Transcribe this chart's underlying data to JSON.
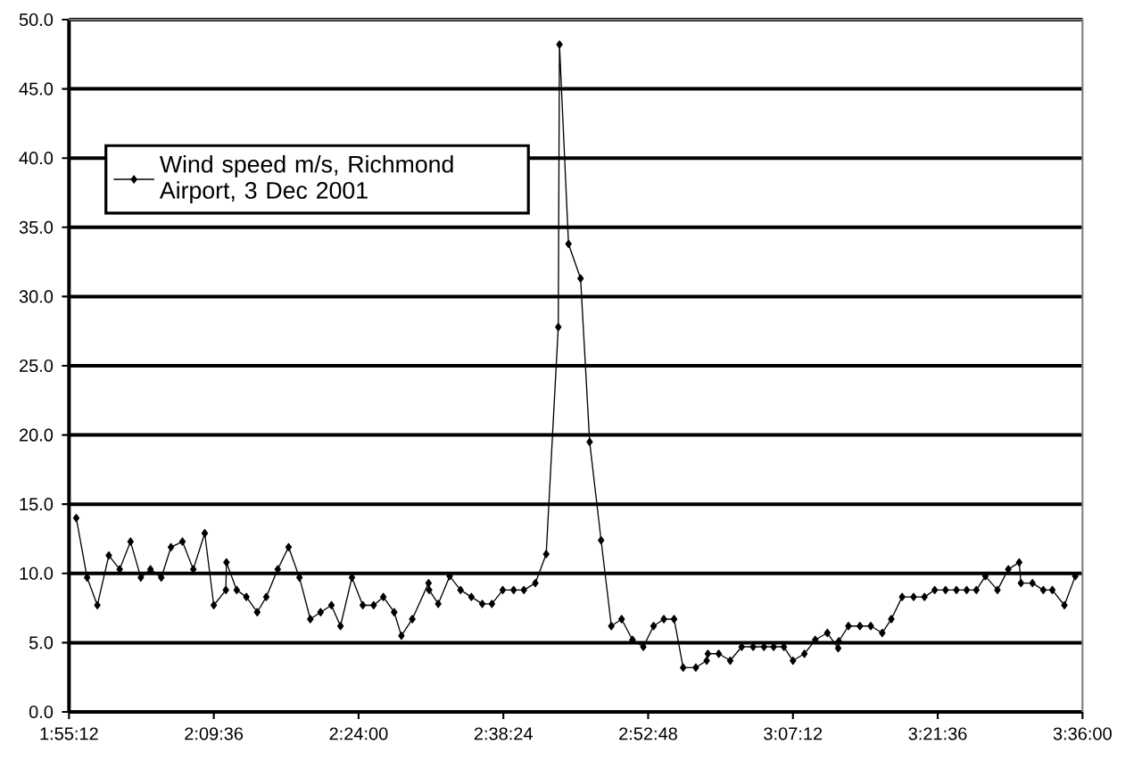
{
  "chart_data": {
    "type": "line",
    "xlim": [
      1.92,
      3.6
    ],
    "ylim": [
      0,
      50
    ],
    "xticks": [
      {
        "value": 1.92,
        "label": "1:55:12"
      },
      {
        "value": 2.16,
        "label": "2:09:36"
      },
      {
        "value": 2.4,
        "label": "2:24:00"
      },
      {
        "value": 2.64,
        "label": "2:38:24"
      },
      {
        "value": 2.88,
        "label": "2:52:48"
      },
      {
        "value": 3.12,
        "label": "3:07:12"
      },
      {
        "value": 3.36,
        "label": "3:21:36"
      },
      {
        "value": 3.6,
        "label": "3:36:00"
      }
    ],
    "yticks": [
      {
        "value": 0,
        "label": "0.0"
      },
      {
        "value": 5,
        "label": "5.0"
      },
      {
        "value": 10,
        "label": "10.0"
      },
      {
        "value": 15,
        "label": "15.0"
      },
      {
        "value": 20,
        "label": "20.0"
      },
      {
        "value": 25,
        "label": "25.0"
      },
      {
        "value": 30,
        "label": "30.0"
      },
      {
        "value": 35,
        "label": "35.0"
      },
      {
        "value": 40,
        "label": "40.0"
      },
      {
        "value": 45,
        "label": "45.0"
      },
      {
        "value": 50,
        "label": "50.0"
      }
    ],
    "grid": "y",
    "legend": "top left",
    "marker": "diamond",
    "line_style": "solid",
    "series": [
      {
        "name": "Wind speed m/s, Richmond Airport, 3 Dec 2001",
        "color": "#000000",
        "x": [
          1.932,
          1.95,
          1.967,
          1.986,
          2.004,
          2.022,
          2.039,
          2.055,
          2.073,
          2.089,
          2.108,
          2.126,
          2.145,
          2.16,
          2.18,
          2.181,
          2.198,
          2.214,
          2.232,
          2.247,
          2.266,
          2.284,
          2.302,
          2.32,
          2.337,
          2.355,
          2.37,
          2.389,
          2.407,
          2.425,
          2.441,
          2.459,
          2.471,
          2.489,
          2.516,
          2.517,
          2.532,
          2.551,
          2.569,
          2.587,
          2.605,
          2.621,
          2.639,
          2.657,
          2.674,
          2.693,
          2.711,
          2.731,
          2.733,
          2.748,
          2.768,
          2.783,
          2.802,
          2.819,
          2.836,
          2.854,
          2.872,
          2.889,
          2.906,
          2.923,
          2.938,
          2.959,
          2.977,
          2.979,
          2.997,
          3.016,
          3.035,
          3.054,
          3.072,
          3.088,
          3.105,
          3.12,
          3.139,
          3.157,
          3.177,
          3.195,
          3.196,
          3.212,
          3.231,
          3.249,
          3.268,
          3.283,
          3.301,
          3.32,
          3.338,
          3.355,
          3.373,
          3.391,
          3.408,
          3.424,
          3.439,
          3.459,
          3.477,
          3.495,
          3.498,
          3.517,
          3.535,
          3.55,
          3.57,
          3.588
        ],
        "values": [
          14.0,
          9.7,
          7.7,
          11.3,
          10.3,
          12.3,
          9.7,
          10.3,
          9.7,
          11.9,
          12.3,
          10.3,
          12.9,
          7.7,
          8.8,
          10.8,
          8.8,
          8.3,
          7.2,
          8.3,
          10.3,
          11.9,
          9.7,
          6.7,
          7.2,
          7.7,
          6.2,
          9.7,
          7.7,
          7.7,
          8.3,
          7.2,
          5.5,
          6.7,
          9.3,
          8.8,
          7.8,
          9.8,
          8.8,
          8.3,
          7.8,
          7.8,
          8.8,
          8.8,
          8.8,
          9.3,
          11.4,
          27.8,
          48.2,
          33.8,
          31.3,
          19.5,
          12.4,
          6.2,
          6.7,
          5.2,
          4.7,
          6.2,
          6.7,
          6.7,
          3.2,
          3.2,
          3.7,
          4.2,
          4.2,
          3.7,
          4.7,
          4.7,
          4.7,
          4.7,
          4.7,
          3.7,
          4.2,
          5.2,
          5.7,
          4.6,
          5.1,
          6.2,
          6.2,
          6.2,
          5.7,
          6.7,
          8.3,
          8.3,
          8.3,
          8.8,
          8.8,
          8.8,
          8.8,
          8.8,
          9.8,
          8.8,
          10.3,
          10.8,
          9.3,
          9.3,
          8.8,
          8.8,
          7.7,
          9.8
        ]
      }
    ]
  }
}
